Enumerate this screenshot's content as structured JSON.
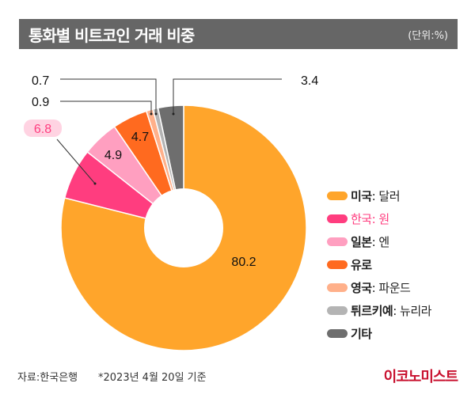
{
  "header": {
    "title": "통화별 비트코인 거래 비중",
    "unit": "(단위:%)"
  },
  "chart_data": {
    "type": "pie",
    "donut": true,
    "title": "통화별 비트코인 거래 비중",
    "unit": "%",
    "slices": [
      {
        "name": "미국",
        "sub": ": 달러",
        "value": 80.2,
        "label": "80.2",
        "color": "#FFA52B"
      },
      {
        "name": "한국",
        "sub": ": 원",
        "value": 6.8,
        "label": "6.8",
        "color": "#FF3D7F"
      },
      {
        "name": "일본",
        "sub": ": 엔",
        "value": 4.9,
        "label": "4.9",
        "color": "#FF9FC0"
      },
      {
        "name": "유로",
        "sub": "",
        "value": 4.7,
        "label": "4.7",
        "color": "#FF6A1F"
      },
      {
        "name": "영국",
        "sub": ": 파운드",
        "value": 0.9,
        "label": "0.9",
        "color": "#FFB08A"
      },
      {
        "name": "튀르키예",
        "sub": ": 뉴리라",
        "value": 0.7,
        "label": "0.7",
        "color": "#B4B4B4"
      },
      {
        "name": "기타",
        "sub": "",
        "value": 3.4,
        "label": "3.4",
        "color": "#6E6E6E"
      }
    ],
    "legend_position": "right",
    "highlight_color": "#FF3D7F"
  },
  "footer": {
    "source": "자료:한국은행",
    "note": "*2023년 4월 20일 기준",
    "brand": "이코노미스트"
  }
}
